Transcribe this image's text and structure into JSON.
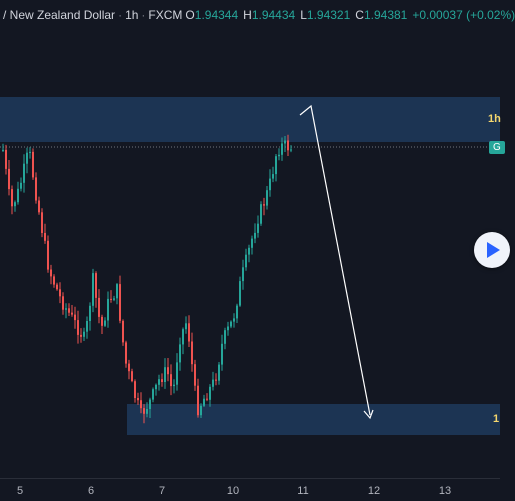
{
  "header": {
    "symbol": "/ New Zealand Dollar",
    "separator": "·",
    "interval": "1h",
    "exchange": "FXCM",
    "open_label": "O",
    "open": "1.94344",
    "high_label": "H",
    "high": "1.94434",
    "low_label": "L",
    "low": "1.94321",
    "close_label": "C",
    "close": "1.94381",
    "change": "+0.00037 (+0.02%)"
  },
  "zones": {
    "upper_label": "1h",
    "lower_label": "1"
  },
  "price_tag": "G",
  "time_axis": {
    "labels": [
      "5",
      "6",
      "7",
      "10",
      "11",
      "12",
      "13"
    ]
  },
  "colors": {
    "background": "#131722",
    "bull": "#26a69a",
    "bear": "#ef5350",
    "zone": "#1e3a5c",
    "arrow": "#ffffff",
    "zone_label": "#f5d76e"
  },
  "icons": {
    "play": "play-icon"
  }
}
